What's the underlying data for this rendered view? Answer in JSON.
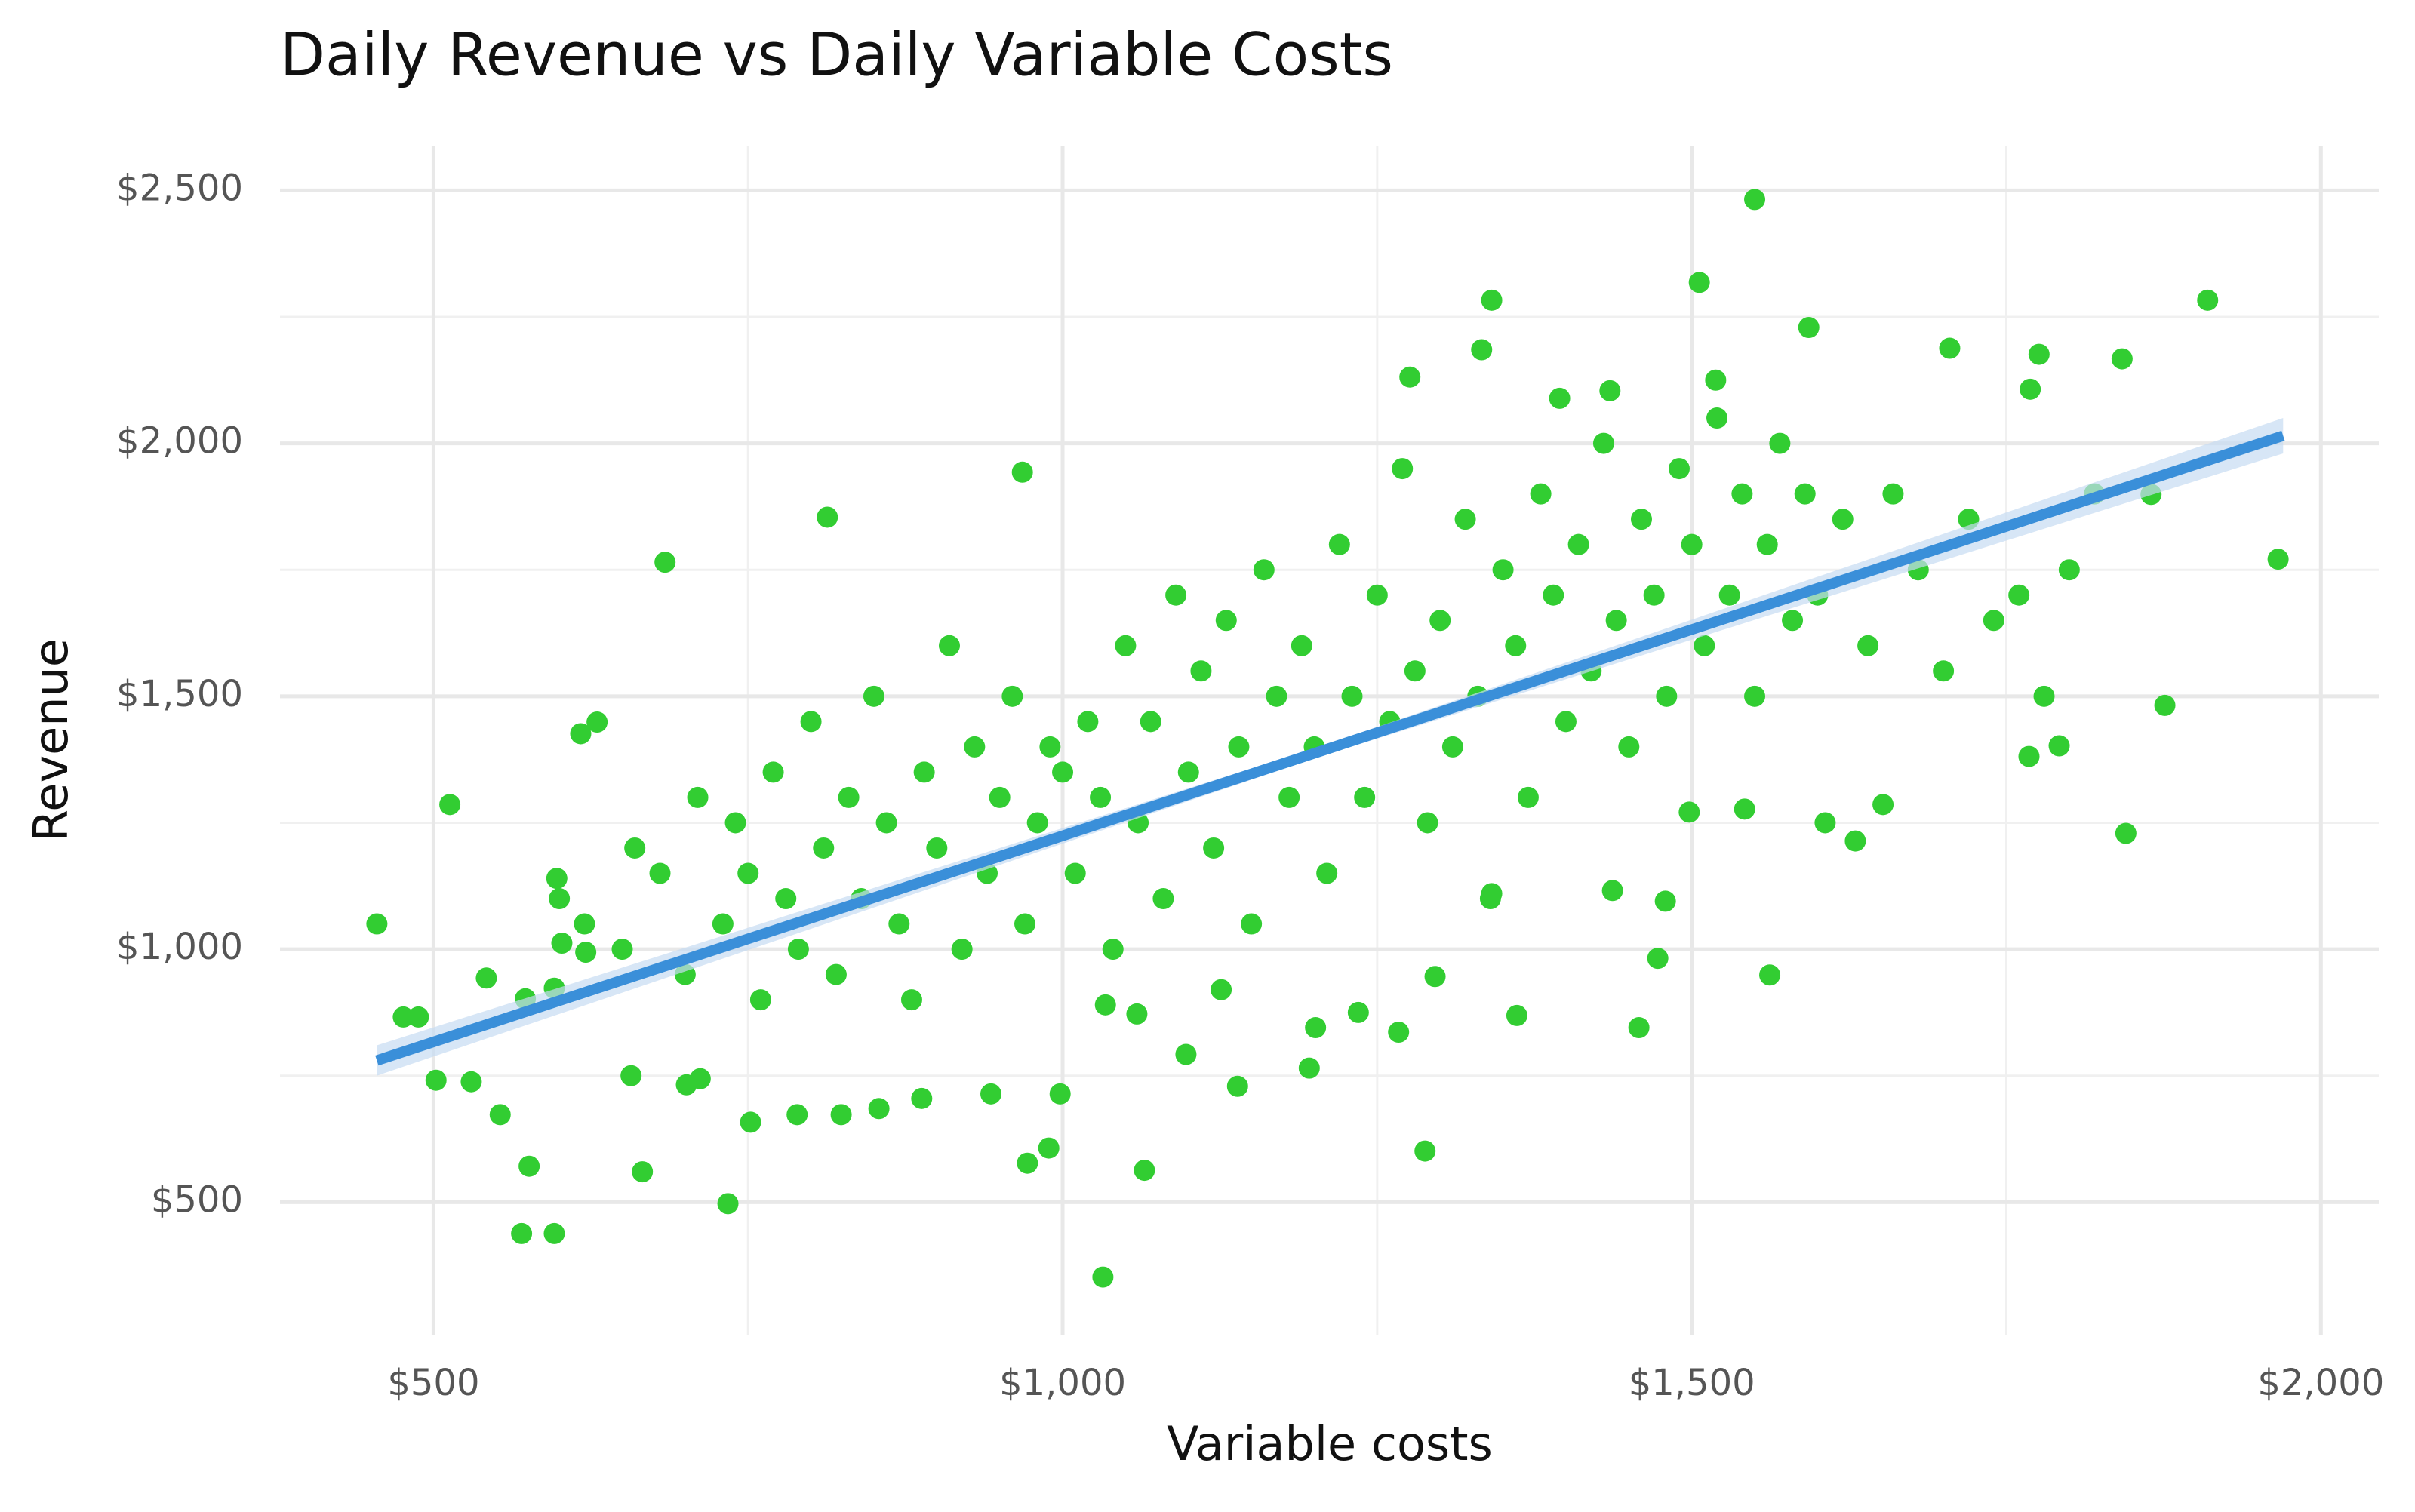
{
  "chart_data": {
    "type": "scatter",
    "title": "Daily Revenue vs Daily Variable Costs",
    "x_label": "Variable costs",
    "y_label": "Revenue",
    "xlim": [
      378,
      2046
    ],
    "ylim": [
      238,
      2587
    ],
    "xticks": [
      {
        "value": 500,
        "label": "$500"
      },
      {
        "value": 1000,
        "label": "$1,000"
      },
      {
        "value": 1500,
        "label": "$1,500"
      },
      {
        "value": 2000,
        "label": "$2,000"
      }
    ],
    "yticks": [
      {
        "value": 500,
        "label": "$500"
      },
      {
        "value": 1000,
        "label": "$1,000"
      },
      {
        "value": 1500,
        "label": "$1,500"
      },
      {
        "value": 2000,
        "label": "$2,000"
      },
      {
        "value": 2500,
        "label": "$2,500"
      }
    ],
    "x_minor_ticks": [
      750,
      1250,
      1750
    ],
    "y_minor_ticks": [
      750,
      1250,
      1750,
      2250
    ],
    "grid": true,
    "series": [
      {
        "color": "#32cd32",
        "x": [
          455,
          1550,
          1966,
          1032,
          570,
          596,
          734,
          1910,
          1341,
          1506,
          813,
          684,
          968,
          1845,
          1876,
          1562,
          1361,
          1458,
          1288,
          1065,
          972,
          989,
          502,
          530,
          553,
          576,
          488,
          513,
          617,
          630,
          598,
          542,
          596,
          666,
          1276,
          1333,
          1776,
          1842,
          1769,
          1705,
          1593,
          1395,
          1435,
          1519,
          1865,
          1792,
          1768,
          1652,
          1630,
          1606,
          1498,
          1542,
          1479,
          1473,
          1437,
          1341,
          1296,
          1267,
          1235,
          1201,
          1196,
          1139,
          1126,
          1098,
          1059,
          1034,
          998,
          943,
          888,
          854,
          824,
          789,
          752,
          712,
          701,
          657,
          621,
          602,
          573,
          476,
          600,
          620,
          650,
          660,
          680,
          700,
          710,
          730,
          740,
          750,
          760,
          770,
          780,
          790,
          800,
          810,
          820,
          830,
          840,
          850,
          860,
          870,
          880,
          890,
          900,
          910,
          920,
          930,
          940,
          950,
          960,
          970,
          980,
          990,
          1000,
          1010,
          1020,
          1030,
          1040,
          1050,
          1060,
          1070,
          1080,
          1090,
          1100,
          1110,
          1120,
          1130,
          1140,
          1150,
          1160,
          1170,
          1180,
          1190,
          1200,
          1210,
          1220,
          1230,
          1240,
          1250,
          1260,
          1270,
          1280,
          1290,
          1300,
          1310,
          1320,
          1330,
          1340,
          1350,
          1360,
          1370,
          1380,
          1390,
          1400,
          1410,
          1420,
          1430,
          1440,
          1450,
          1460,
          1470,
          1480,
          1490,
          1500,
          1510,
          1520,
          1530,
          1540,
          1550,
          1560,
          1570,
          1580,
          1590,
          1600,
          1620,
          1640,
          1660,
          1680,
          1700,
          1720,
          1740,
          1760,
          1780,
          1800,
          1820
        ],
        "y": [
          1050,
          2482,
          1771,
          352,
          438,
          438,
          497,
          2283,
          2283,
          2318,
          1854,
          1765,
          1943,
          1229,
          1482,
          949,
          869,
          845,
          601,
          563,
          577,
          607,
          741,
          738,
          673,
          571,
          866,
          1286,
          1426,
          1449,
          1140,
          943,
          923,
          560,
          2131,
          2185,
          2176,
          2167,
          2107,
          2188,
          2229,
          2089,
          2104,
          2125,
          1899,
          1402,
          1381,
          1286,
          1214,
          1250,
          1271,
          1277,
          1095,
          982,
          1116,
          1110,
          946,
          836,
          875,
          845,
          765,
          729,
          920,
          792,
          872,
          890,
          714,
          714,
          705,
          685,
          673,
          673,
          658,
          744,
          732,
          750,
          994,
          1012,
          902,
          866,
          1100,
          1050,
          1000,
          1200,
          1150,
          950,
          1300,
          1050,
          1250,
          1150,
          900,
          1350,
          1100,
          1000,
          1450,
          1200,
          950,
          1300,
          1100,
          1500,
          1250,
          1050,
          900,
          1350,
          1200,
          1600,
          1000,
          1400,
          1150,
          1300,
          1500,
          1050,
          1250,
          1400,
          1350,
          1150,
          1450,
          1300,
          1000,
          1600,
          1250,
          1450,
          1100,
          1700,
          1350,
          1550,
          1200,
          1650,
          1400,
          1050,
          1750,
          1500,
          1300,
          1600,
          1400,
          1150,
          1800,
          1500,
          1300,
          1700,
          1450,
          1950,
          1550,
          1250,
          1650,
          1400,
          1850,
          1500,
          1100,
          1750,
          1600,
          1300,
          1900,
          1700,
          1450,
          1800,
          1550,
          2000,
          1650,
          1400,
          1850,
          1700,
          1500,
          1950,
          1800,
          1600,
          2050,
          1700,
          1900,
          1500,
          1800,
          2000,
          1650,
          1900,
          1700,
          1850,
          1600,
          1900,
          1750,
          1550,
          1850,
          1650,
          1700,
          1500,
          1750,
          1900
        ]
      }
    ],
    "trend": {
      "color": "#3a8fd9",
      "band_color": "#c6dcf2",
      "x": [
        455,
        1970
      ],
      "y": [
        780,
        2015
      ],
      "band_x": [
        455,
        1200,
        1970
      ],
      "band_lower": [
        750,
        1377,
        1980
      ],
      "band_upper": [
        810,
        1397,
        2050
      ]
    }
  }
}
